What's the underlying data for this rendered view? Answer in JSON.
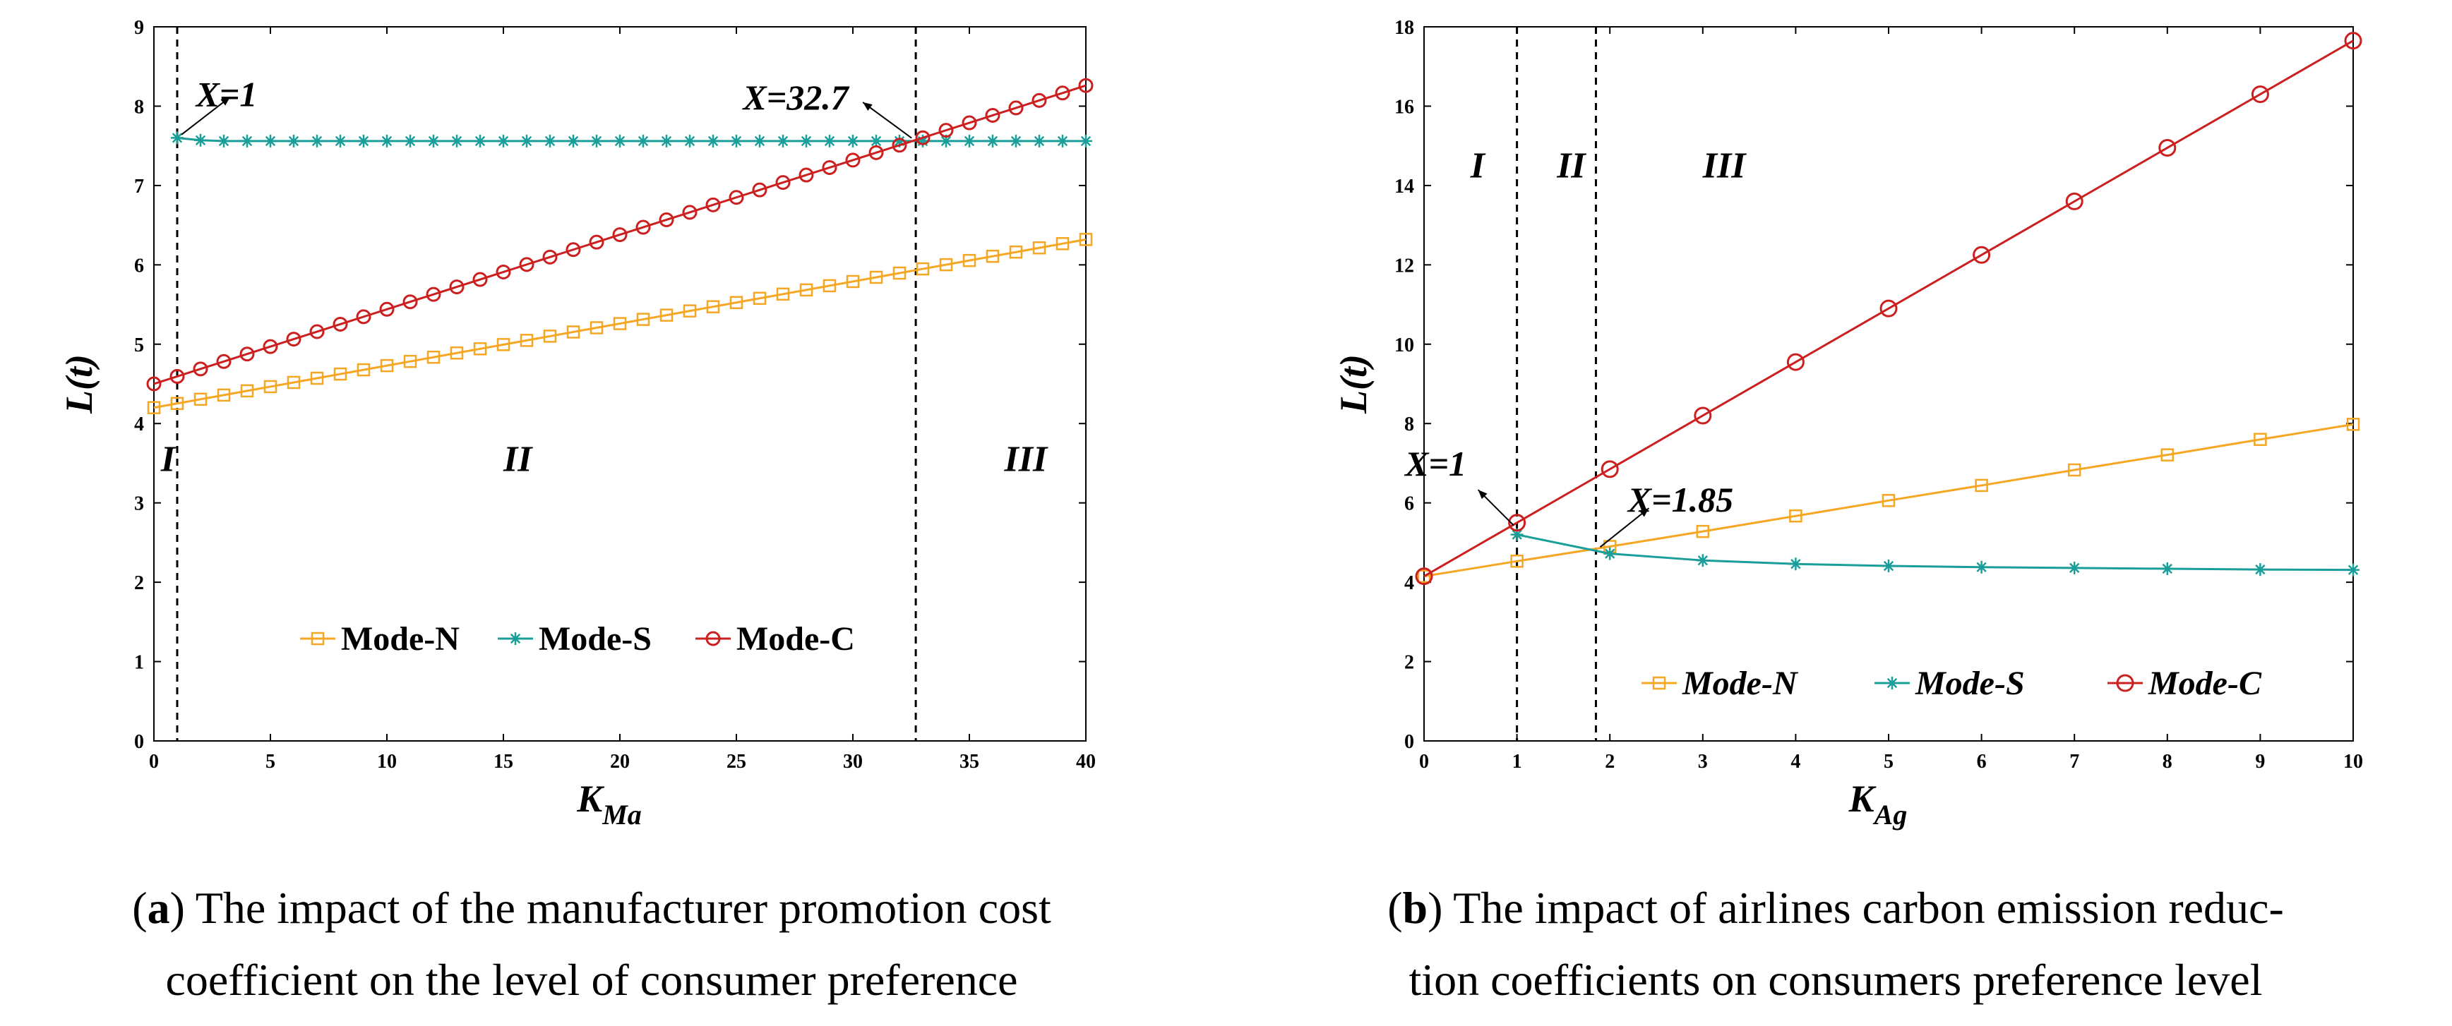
{
  "chart_data": [
    {
      "id": "a",
      "type": "line",
      "ylabel": "L(t)",
      "xlabel_main": "K",
      "xlabel_sub": "Ma",
      "xlim": [
        0,
        40
      ],
      "ylim": [
        0,
        9
      ],
      "xticks": [
        0,
        5,
        10,
        15,
        20,
        25,
        30,
        35,
        40
      ],
      "yticks": [
        0,
        1,
        2,
        3,
        4,
        5,
        6,
        7,
        8,
        9
      ],
      "x": [
        0,
        1,
        2,
        3,
        4,
        5,
        6,
        7,
        8,
        9,
        10,
        11,
        12,
        13,
        14,
        15,
        16,
        17,
        18,
        19,
        20,
        21,
        22,
        23,
        24,
        25,
        26,
        27,
        28,
        29,
        30,
        31,
        32,
        33,
        34,
        35,
        36,
        37,
        38,
        39,
        40
      ],
      "series": [
        {
          "name": "Mode-N",
          "color": "#f5a623",
          "marker": "square",
          "values": [
            4.2,
            4.253,
            4.306,
            4.359,
            4.412,
            4.465,
            4.518,
            4.571,
            4.624,
            4.677,
            4.73,
            4.783,
            4.836,
            4.889,
            4.942,
            4.995,
            5.048,
            5.101,
            5.154,
            5.207,
            5.26,
            5.313,
            5.366,
            5.419,
            5.472,
            5.525,
            5.578,
            5.631,
            5.684,
            5.737,
            5.79,
            5.843,
            5.896,
            5.949,
            6.002,
            6.055,
            6.108,
            6.161,
            6.214,
            6.267,
            6.32
          ]
        },
        {
          "name": "Mode-S",
          "color": "#1a9e9a",
          "marker": "asterisk",
          "values": [
            null,
            7.6,
            7.57,
            7.56,
            7.56,
            7.56,
            7.56,
            7.56,
            7.56,
            7.56,
            7.56,
            7.56,
            7.56,
            7.56,
            7.56,
            7.56,
            7.56,
            7.56,
            7.56,
            7.56,
            7.56,
            7.56,
            7.56,
            7.56,
            7.56,
            7.56,
            7.56,
            7.56,
            7.56,
            7.56,
            7.56,
            7.56,
            7.56,
            7.56,
            7.56,
            7.56,
            7.56,
            7.56,
            7.56,
            7.56,
            7.56
          ]
        },
        {
          "name": "Mode-C",
          "color": "#cc1f1f",
          "marker": "circle",
          "values": [
            4.5,
            4.594,
            4.688,
            4.782,
            4.876,
            4.97,
            5.064,
            5.158,
            5.252,
            5.346,
            5.44,
            5.534,
            5.628,
            5.722,
            5.816,
            5.91,
            6.004,
            6.098,
            6.192,
            6.286,
            6.38,
            6.474,
            6.568,
            6.662,
            6.756,
            6.85,
            6.944,
            7.038,
            7.132,
            7.226,
            7.32,
            7.414,
            7.508,
            7.602,
            7.696,
            7.79,
            7.884,
            7.978,
            8.072,
            8.166,
            8.26
          ]
        }
      ],
      "vlines": [
        1,
        32.7
      ],
      "annotations": [
        {
          "text": "X=1",
          "x": 1,
          "y": 7.6
        },
        {
          "text": "X=32.7",
          "x": 32.7,
          "y": 7.56
        }
      ],
      "regions": [
        "I",
        "II",
        "III"
      ],
      "legend_position": "lower-center"
    },
    {
      "id": "b",
      "type": "line",
      "ylabel": "L(t)",
      "xlabel_main": "K",
      "xlabel_sub": "Ag",
      "xlim": [
        0,
        10
      ],
      "ylim": [
        0,
        18
      ],
      "xticks": [
        0,
        1,
        2,
        3,
        4,
        5,
        6,
        7,
        8,
        9,
        10
      ],
      "yticks": [
        0,
        2,
        4,
        6,
        8,
        10,
        12,
        14,
        16,
        18
      ],
      "x": [
        0,
        1,
        2,
        3,
        4,
        5,
        6,
        7,
        8,
        9,
        10
      ],
      "series": [
        {
          "name": "Mode-N",
          "color": "#f5a623",
          "marker": "square",
          "values": [
            4.15,
            4.53,
            4.9,
            5.28,
            5.67,
            6.06,
            6.44,
            6.83,
            7.21,
            7.6,
            7.98
          ]
        },
        {
          "name": "Mode-S",
          "color": "#1a9e9a",
          "marker": "asterisk",
          "values": [
            null,
            5.2,
            4.72,
            4.55,
            4.46,
            4.41,
            4.38,
            4.36,
            4.34,
            4.32,
            4.31
          ]
        },
        {
          "name": "Mode-C",
          "color": "#cc1f1f",
          "marker": "circle",
          "values": [
            4.15,
            5.5,
            6.85,
            8.2,
            9.55,
            10.9,
            12.25,
            13.6,
            14.95,
            16.3,
            17.65
          ]
        }
      ],
      "vlines": [
        1,
        1.85
      ],
      "annotations": [
        {
          "text": "X=1",
          "x": 1,
          "y": 5.35
        },
        {
          "text": "X=1.85",
          "x": 1.85,
          "y": 4.8
        }
      ],
      "regions": [
        "I",
        "II",
        "III"
      ],
      "legend_position": "lower-center"
    }
  ],
  "captions": {
    "a": {
      "label": "a",
      "line1": "The impact of the manufacturer promotion cost",
      "line2": "coefficient on the level of consumer preference"
    },
    "b": {
      "label": "b",
      "line1": "The impact of airlines carbon emission reduc-",
      "line2": "tion coefficients on consumers preference level"
    }
  }
}
